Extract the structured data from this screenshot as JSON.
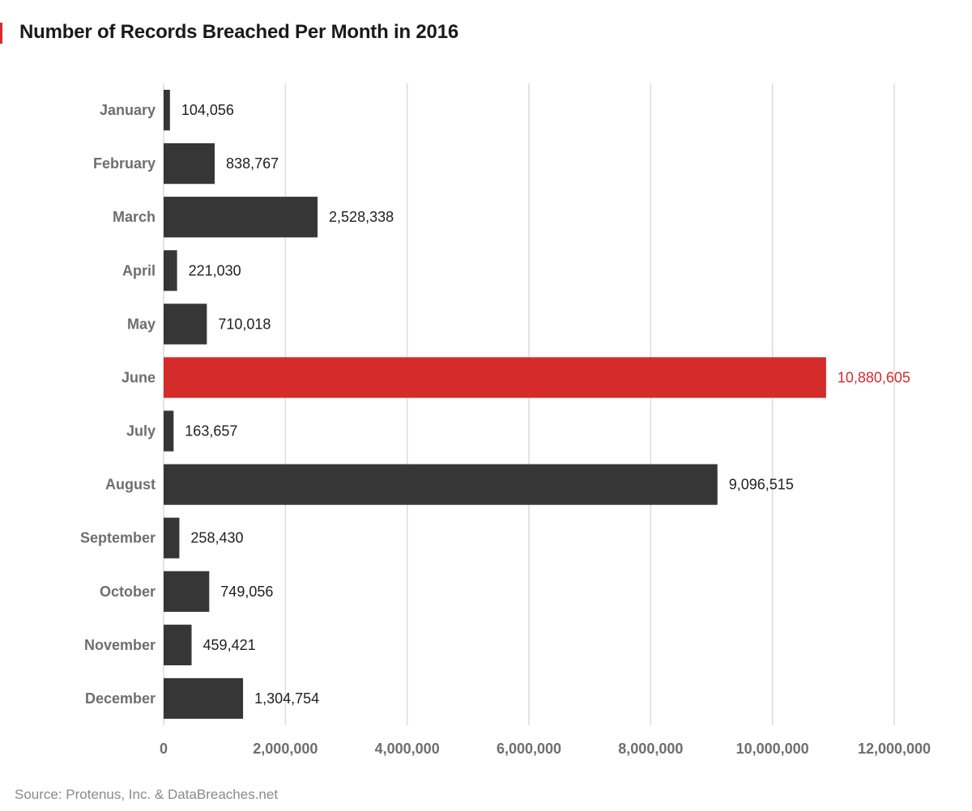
{
  "chart_data": {
    "type": "bar",
    "orientation": "horizontal",
    "title": "Number of Records Breached Per Month in 2016",
    "xlabel": "",
    "ylabel": "",
    "categories": [
      "January",
      "February",
      "March",
      "April",
      "May",
      "June",
      "July",
      "August",
      "September",
      "October",
      "November",
      "December"
    ],
    "values": [
      104056,
      838767,
      2528338,
      221030,
      710018,
      10880605,
      163657,
      9096515,
      258430,
      749056,
      459421,
      1304754
    ],
    "value_labels": [
      "104,056",
      "838,767",
      "2,528,338",
      "221,030",
      "710,018",
      "10,880,605",
      "163,657",
      "9,096,515",
      "258,430",
      "749,056",
      "459,421",
      "1,304,754"
    ],
    "xlim": [
      0,
      12000000
    ],
    "x_ticks": [
      0,
      2000000,
      4000000,
      6000000,
      8000000,
      10000000,
      12000000
    ],
    "x_tick_labels": [
      "0",
      "2,000,000",
      "4,000,000",
      "6,000,000",
      "8,000,000",
      "10,000,000",
      "12,000,000"
    ],
    "grid": true,
    "highlight_index": 5,
    "colors": {
      "bar": "#363636",
      "highlight": "#d62b2b",
      "grid": "#dcdcdc"
    },
    "source": "Source: Protenus, Inc. & DataBreaches.net"
  }
}
